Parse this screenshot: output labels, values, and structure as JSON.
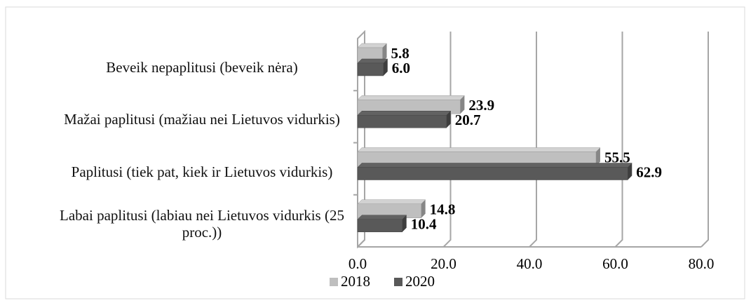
{
  "chart_data": {
    "type": "bar3d_horizontal",
    "categories": [
      "Beveik nepaplitusi (beveik nėra)",
      "Mažai paplitusi (mažiau nei Lietuvos vidurkis)",
      "Paplitusi (tiek pat, kiek ir Lietuvos vidurkis)",
      "Labai paplitusi (labiau nei Lietuvos vidurkis (25 proc.))"
    ],
    "series": [
      {
        "name": "2018",
        "color": "#bfbfbf",
        "values": [
          5.8,
          23.9,
          55.5,
          14.8
        ],
        "value_labels": [
          "5.8",
          "23.9",
          "55.5",
          "14.8"
        ]
      },
      {
        "name": "2020",
        "color": "#595959",
        "values": [
          6.0,
          20.7,
          62.9,
          10.4
        ],
        "value_labels": [
          "6.0",
          "20.7",
          "62.9",
          "10.4"
        ]
      }
    ],
    "xlim": [
      0,
      80
    ],
    "xticks": [
      {
        "value": 0,
        "label": "0.0"
      },
      {
        "value": 20,
        "label": "20.0"
      },
      {
        "value": 40,
        "label": "40.0"
      },
      {
        "value": 60,
        "label": "60.0"
      },
      {
        "value": 80,
        "label": "80.0"
      }
    ],
    "grid": true,
    "legend": "bottom"
  }
}
